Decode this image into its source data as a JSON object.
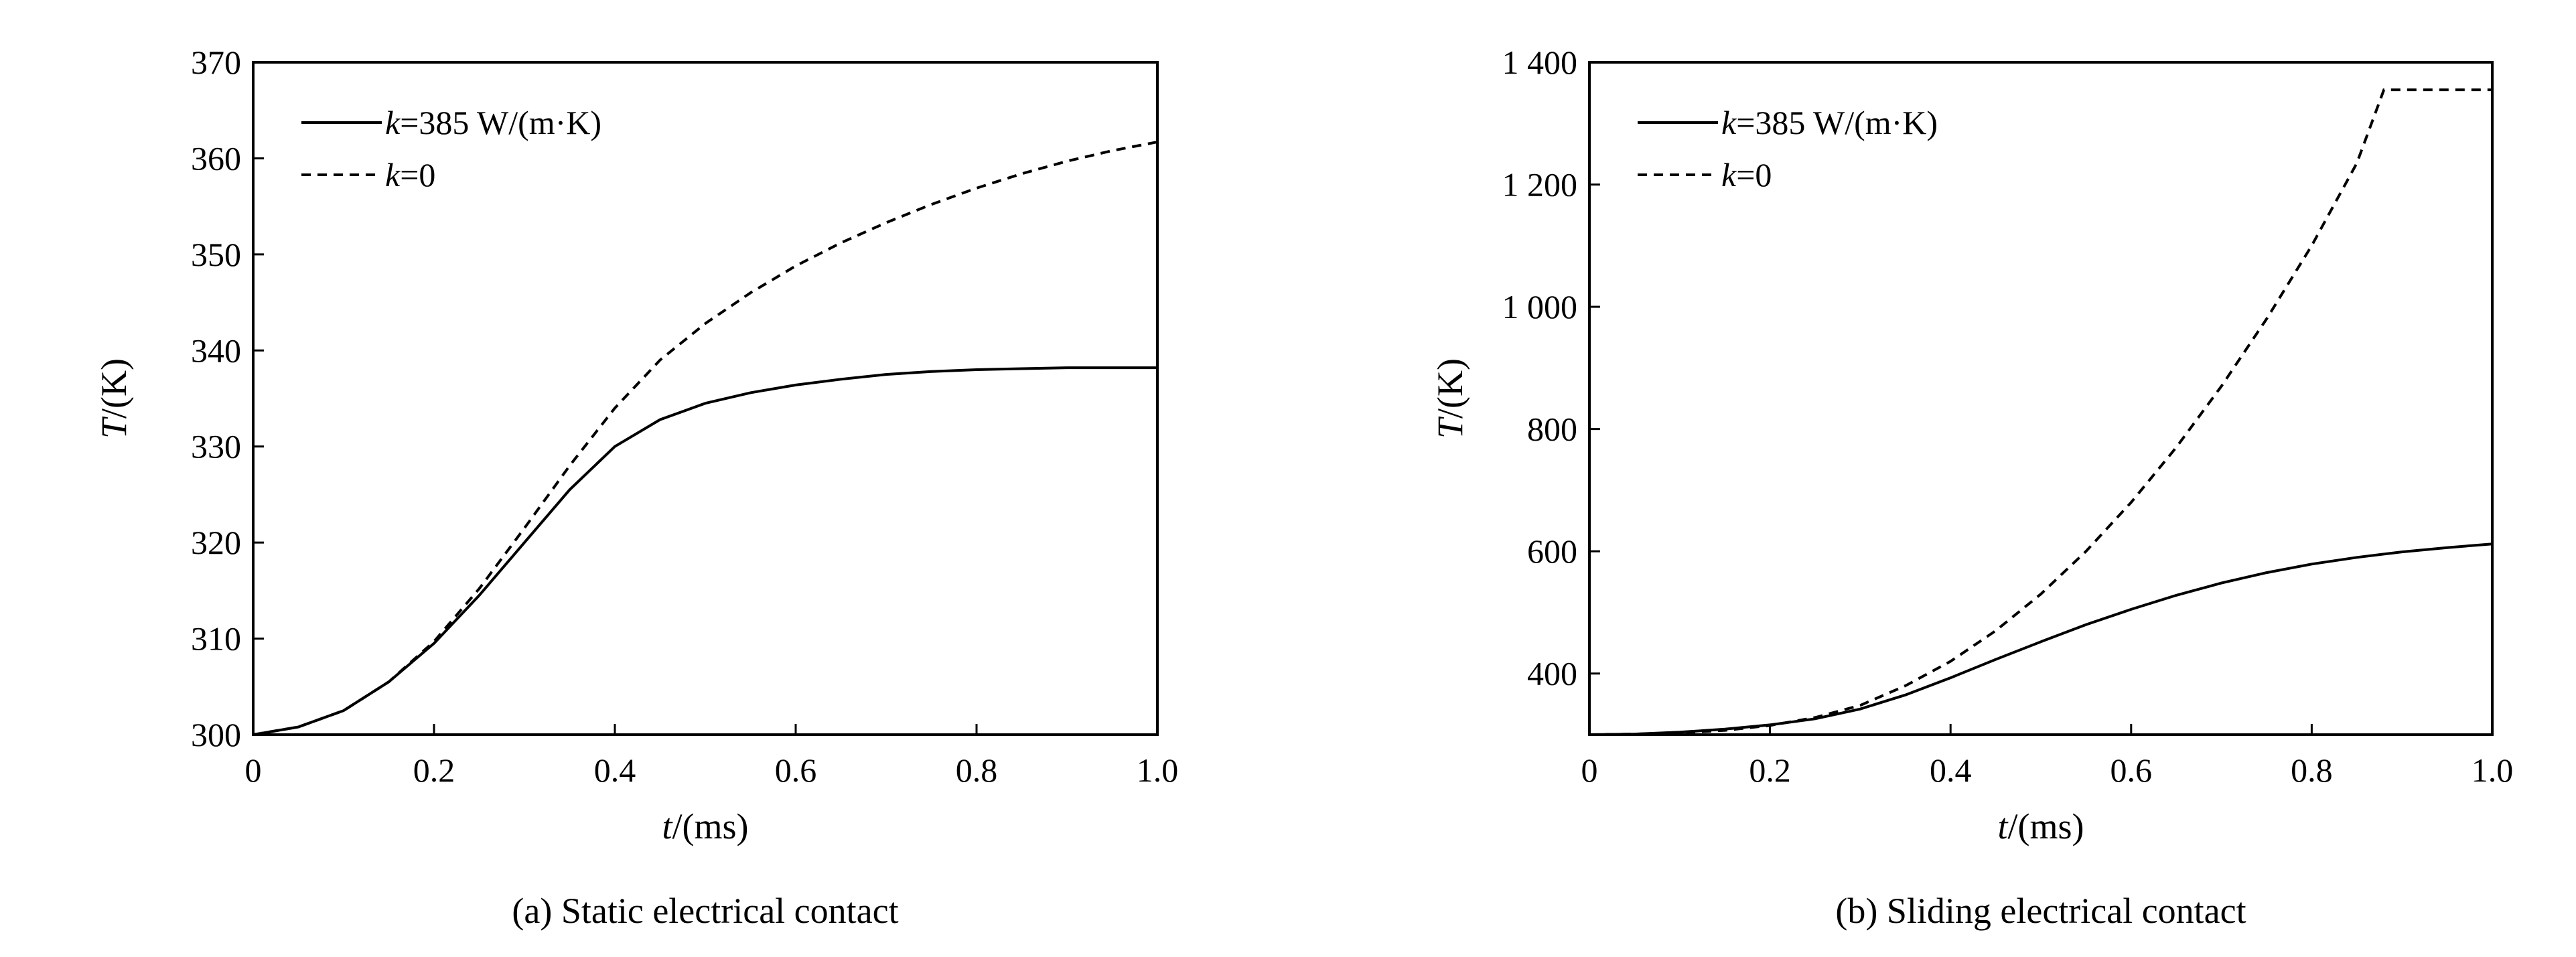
{
  "chart_data": [
    {
      "type": "line",
      "caption": "(a) Static electrical contact",
      "xlabel_var": "t",
      "xlabel_unit": "/(ms)",
      "ylabel_var": "T",
      "ylabel_unit": "/(K)",
      "xlim": [
        0,
        1.0
      ],
      "ylim": [
        300,
        370
      ],
      "xticks": [
        0,
        0.2,
        0.4,
        0.6,
        0.8,
        1.0
      ],
      "xtick_labels": [
        "0",
        "0.2",
        "0.4",
        "0.6",
        "0.8",
        "1.0"
      ],
      "yticks": [
        300,
        310,
        320,
        330,
        340,
        350,
        360,
        370
      ],
      "ytick_labels": [
        "300",
        "310",
        "320",
        "330",
        "340",
        "350",
        "360",
        "370"
      ],
      "grid": false,
      "legend_position": "top-left",
      "series": [
        {
          "name_var": "k",
          "name_rest": "=385 W/(m·K)",
          "style": "solid",
          "x": [
            0,
            0.05,
            0.1,
            0.15,
            0.2,
            0.25,
            0.3,
            0.35,
            0.4,
            0.45,
            0.5,
            0.55,
            0.6,
            0.65,
            0.7,
            0.75,
            0.8,
            0.85,
            0.9,
            0.95,
            1.0
          ],
          "y": [
            300,
            300.8,
            302.5,
            305.5,
            309.5,
            314.5,
            320,
            325.5,
            330,
            332.8,
            334.5,
            335.6,
            336.4,
            337,
            337.5,
            337.8,
            338,
            338.1,
            338.2,
            338.2,
            338.2
          ]
        },
        {
          "name_var": "k",
          "name_rest": "=0",
          "style": "dashed",
          "x": [
            0,
            0.05,
            0.1,
            0.15,
            0.2,
            0.25,
            0.3,
            0.35,
            0.4,
            0.45,
            0.5,
            0.55,
            0.6,
            0.65,
            0.7,
            0.75,
            0.8,
            0.85,
            0.9,
            0.95,
            1.0
          ],
          "y": [
            300,
            300.8,
            302.5,
            305.5,
            309.7,
            315.2,
            321.5,
            328,
            334,
            339,
            342.8,
            346,
            348.8,
            351.2,
            353.3,
            355.2,
            356.9,
            358.4,
            359.7,
            360.8,
            361.7
          ]
        }
      ]
    },
    {
      "type": "line",
      "caption": "(b) Sliding electrical contact",
      "xlabel_var": "t",
      "xlabel_unit": "/(ms)",
      "ylabel_var": "T",
      "ylabel_unit": "/(K)",
      "xlim": [
        0,
        1.0
      ],
      "ylim": [
        300,
        1400
      ],
      "xticks": [
        0,
        0.2,
        0.4,
        0.6,
        0.8,
        1.0
      ],
      "xtick_labels": [
        "0",
        "0.2",
        "0.4",
        "0.6",
        "0.8",
        "1.0"
      ],
      "yticks": [
        400,
        600,
        800,
        1000,
        1200,
        1400
      ],
      "ytick_labels": [
        "400",
        "600",
        "800",
        "1 000",
        "1 200",
        "1 400"
      ],
      "grid": false,
      "legend_position": "top-left",
      "series": [
        {
          "name_var": "k",
          "name_rest": "=385 W/(m·K)",
          "style": "solid",
          "x": [
            0,
            0.05,
            0.1,
            0.15,
            0.2,
            0.25,
            0.3,
            0.35,
            0.4,
            0.45,
            0.5,
            0.55,
            0.6,
            0.65,
            0.7,
            0.75,
            0.8,
            0.85,
            0.9,
            0.95,
            1.0
          ],
          "y": [
            300,
            301,
            304,
            309,
            316,
            326,
            342,
            365,
            393,
            423,
            452,
            480,
            505,
            528,
            548,
            565,
            579,
            590,
            599,
            606,
            612
          ]
        },
        {
          "name_var": "k",
          "name_rest": "=0",
          "style": "dashed",
          "x": [
            0,
            0.05,
            0.1,
            0.15,
            0.2,
            0.25,
            0.3,
            0.35,
            0.4,
            0.45,
            0.5,
            0.55,
            0.6,
            0.65,
            0.7,
            0.75,
            0.8,
            0.85,
            0.88,
            0.9,
            0.95,
            1.0
          ],
          "y": [
            300,
            301,
            303,
            307,
            315,
            328,
            348,
            380,
            420,
            470,
            530,
            600,
            680,
            770,
            870,
            980,
            1100,
            1235,
            1355,
            1355,
            1355,
            1355
          ]
        }
      ]
    }
  ]
}
